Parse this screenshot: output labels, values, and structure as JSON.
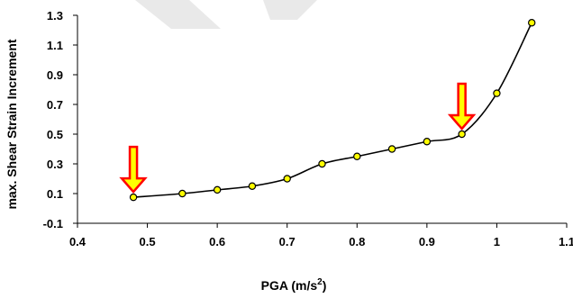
{
  "chart_data": {
    "type": "line",
    "xlabel": "PGA (m/s²)",
    "ylabel": "max. Shear Strain Increment",
    "xlim": [
      0.4,
      1.1
    ],
    "ylim": [
      -0.1,
      1.3
    ],
    "x_ticks": [
      "0.4",
      "0.5",
      "0.6",
      "0.7",
      "0.8",
      "0.9",
      "1",
      "1.1"
    ],
    "y_ticks": [
      "-0.1",
      "0.1",
      "0.3",
      "0.5",
      "0.7",
      "0.9",
      "1.1",
      "1.3"
    ],
    "grid": false,
    "series": [
      {
        "x": [
          0.48,
          0.55,
          0.6,
          0.65,
          0.7,
          0.75,
          0.8,
          0.85,
          0.9,
          0.95,
          1.0,
          1.05
        ],
        "y": [
          0.075,
          0.1,
          0.125,
          0.15,
          0.2,
          0.3,
          0.35,
          0.4,
          0.45,
          0.5,
          0.775,
          1.25
        ],
        "line_color": "#000000",
        "marker_fill": "#ffff00",
        "marker_edge": "#000000"
      }
    ],
    "annotations": [
      {
        "type": "arrow-down",
        "x": 0.48,
        "y": 0.075,
        "fill": "#ffff00",
        "edge": "#ff0000"
      },
      {
        "type": "arrow-down",
        "x": 0.95,
        "y": 0.5,
        "fill": "#ffff00",
        "edge": "#ff0000"
      }
    ]
  }
}
